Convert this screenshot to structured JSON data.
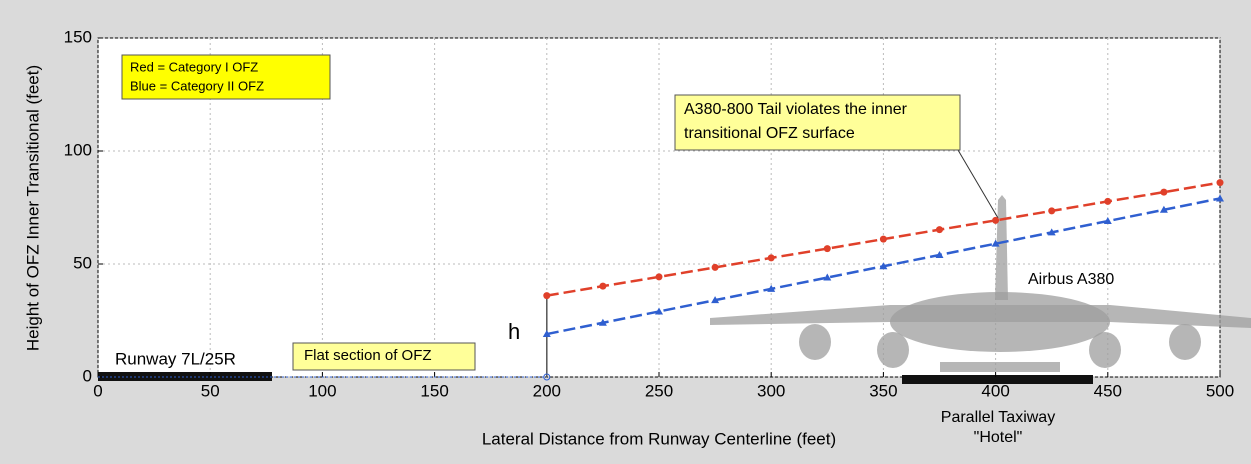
{
  "chart_data": {
    "type": "line",
    "xlabel": "Lateral Distance from Runway Centerline (feet)",
    "ylabel": "Height of OFZ Inner Transitional (feet)",
    "x": [
      200,
      225,
      250,
      275,
      300,
      325,
      350,
      375,
      400,
      425,
      450,
      475,
      500
    ],
    "series": [
      {
        "name": "Red = Category I OFZ",
        "color": "#e0402a",
        "marker": "circle",
        "values": [
          36,
          40.2,
          44.3,
          48.5,
          52.7,
          56.8,
          61,
          65.2,
          69.3,
          73.5,
          77.7,
          81.8,
          86
        ]
      },
      {
        "name": "Blue = Category II OFZ",
        "color": "#2f5fd0",
        "marker": "triangle",
        "values": [
          19,
          24,
          29,
          34,
          39,
          44,
          49,
          54,
          59,
          64,
          69,
          74,
          79
        ]
      }
    ],
    "xlim": [
      0,
      500
    ],
    "xticks": [
      0,
      50,
      100,
      150,
      200,
      250,
      300,
      350,
      400,
      450,
      500
    ],
    "ylim": [
      0,
      150
    ],
    "yticks": [
      0,
      50,
      100,
      150
    ],
    "grid": true,
    "annotations": {
      "runway": "Runway 7L/25R",
      "flat": "Flat section of OFZ",
      "h": "h",
      "tail": [
        "A380-800 Tail violates the inner",
        "transitional OFZ surface"
      ],
      "aircraft": "Airbus A380",
      "taxiway": [
        "Parallel Taxiway",
        "\"Hotel\""
      ]
    }
  }
}
